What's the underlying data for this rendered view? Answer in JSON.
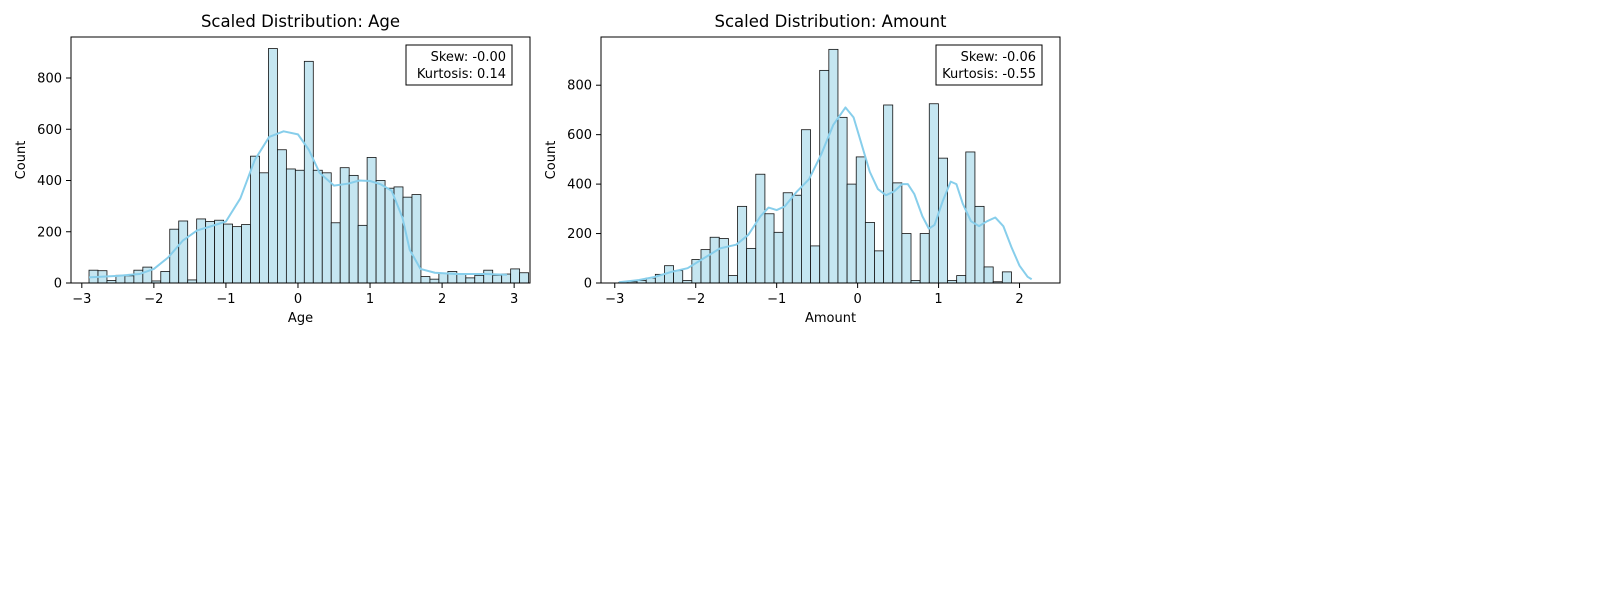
{
  "chart_data": [
    {
      "type": "bar",
      "subtype": "histogram-with-kde",
      "title": "Scaled Distribution: Age",
      "xlabel": "Age",
      "ylabel": "Count",
      "xlim": [
        -3.15,
        3.22
      ],
      "ylim": [
        0,
        960
      ],
      "xticks": [
        -3,
        -2,
        -1,
        0,
        1,
        2,
        3
      ],
      "yticks": [
        0,
        200,
        400,
        600,
        800
      ],
      "bin_start": -2.9,
      "bin_width": 0.1245,
      "counts": [
        50,
        48,
        10,
        30,
        28,
        50,
        62,
        8,
        45,
        210,
        242,
        12,
        250,
        240,
        245,
        230,
        220,
        228,
        495,
        430,
        915,
        520,
        445,
        440,
        865,
        440,
        430,
        235,
        450,
        420,
        225,
        490,
        400,
        370,
        375,
        335,
        345,
        25,
        15,
        38,
        45,
        35,
        20,
        30,
        50,
        30,
        35,
        55,
        40
      ],
      "kde": [
        [
          -2.9,
          22
        ],
        [
          -2.5,
          28
        ],
        [
          -2.2,
          35
        ],
        [
          -2.0,
          55
        ],
        [
          -1.8,
          100
        ],
        [
          -1.6,
          165
        ],
        [
          -1.4,
          205
        ],
        [
          -1.2,
          222
        ],
        [
          -1.0,
          240
        ],
        [
          -0.8,
          330
        ],
        [
          -0.6,
          480
        ],
        [
          -0.4,
          570
        ],
        [
          -0.2,
          592
        ],
        [
          0.0,
          580
        ],
        [
          0.15,
          520
        ],
        [
          0.3,
          430
        ],
        [
          0.5,
          380
        ],
        [
          0.7,
          388
        ],
        [
          0.85,
          400
        ],
        [
          1.0,
          398
        ],
        [
          1.15,
          385
        ],
        [
          1.3,
          360
        ],
        [
          1.45,
          255
        ],
        [
          1.55,
          130
        ],
        [
          1.7,
          55
        ],
        [
          1.9,
          40
        ],
        [
          2.2,
          35
        ],
        [
          2.6,
          35
        ],
        [
          2.9,
          32
        ]
      ],
      "annotation": [
        "Skew: -0.00",
        "Kurtosis: 0.14"
      ]
    },
    {
      "type": "bar",
      "subtype": "histogram-with-kde",
      "title": "Scaled Distribution: Amount",
      "xlabel": "Amount",
      "ylabel": "Count",
      "xlim": [
        -3.17,
        2.5
      ],
      "ylim": [
        0,
        995
      ],
      "xticks": [
        -3,
        -2,
        -1,
        0,
        1,
        2
      ],
      "yticks": [
        0,
        200,
        400,
        600,
        800
      ],
      "bin_start": -2.95,
      "bin_width": 0.1128,
      "counts": [
        2,
        5,
        10,
        20,
        35,
        70,
        50,
        10,
        95,
        135,
        185,
        180,
        30,
        310,
        140,
        440,
        280,
        205,
        365,
        355,
        620,
        150,
        860,
        945,
        670,
        400,
        510,
        245,
        130,
        720,
        405,
        200,
        10,
        200,
        725,
        505,
        10,
        30,
        530,
        310,
        65,
        5,
        45
      ],
      "kde": [
        [
          -2.95,
          3
        ],
        [
          -2.7,
          12
        ],
        [
          -2.5,
          25
        ],
        [
          -2.3,
          45
        ],
        [
          -2.1,
          60
        ],
        [
          -1.9,
          100
        ],
        [
          -1.7,
          140
        ],
        [
          -1.5,
          155
        ],
        [
          -1.35,
          195
        ],
        [
          -1.2,
          270
        ],
        [
          -1.1,
          305
        ],
        [
          -1.0,
          295
        ],
        [
          -0.9,
          310
        ],
        [
          -0.75,
          370
        ],
        [
          -0.6,
          420
        ],
        [
          -0.45,
          520
        ],
        [
          -0.3,
          640
        ],
        [
          -0.15,
          710
        ],
        [
          -0.05,
          670
        ],
        [
          0.05,
          560
        ],
        [
          0.15,
          450
        ],
        [
          0.25,
          380
        ],
        [
          0.35,
          355
        ],
        [
          0.45,
          370
        ],
        [
          0.55,
          400
        ],
        [
          0.62,
          400
        ],
        [
          0.7,
          360
        ],
        [
          0.8,
          270
        ],
        [
          0.88,
          220
        ],
        [
          0.95,
          235
        ],
        [
          1.05,
          330
        ],
        [
          1.15,
          410
        ],
        [
          1.22,
          400
        ],
        [
          1.3,
          320
        ],
        [
          1.4,
          250
        ],
        [
          1.5,
          230
        ],
        [
          1.6,
          250
        ],
        [
          1.7,
          265
        ],
        [
          1.8,
          230
        ],
        [
          1.9,
          145
        ],
        [
          2.0,
          70
        ],
        [
          2.1,
          25
        ],
        [
          2.15,
          15
        ]
      ],
      "annotation": [
        "Skew: -0.06",
        "Kurtosis: -0.55"
      ]
    }
  ],
  "colors": {
    "bar_fill": "#c5e6f1",
    "bar_edge": "#111111",
    "kde_line": "#87ceeb",
    "axes": "#000000"
  }
}
